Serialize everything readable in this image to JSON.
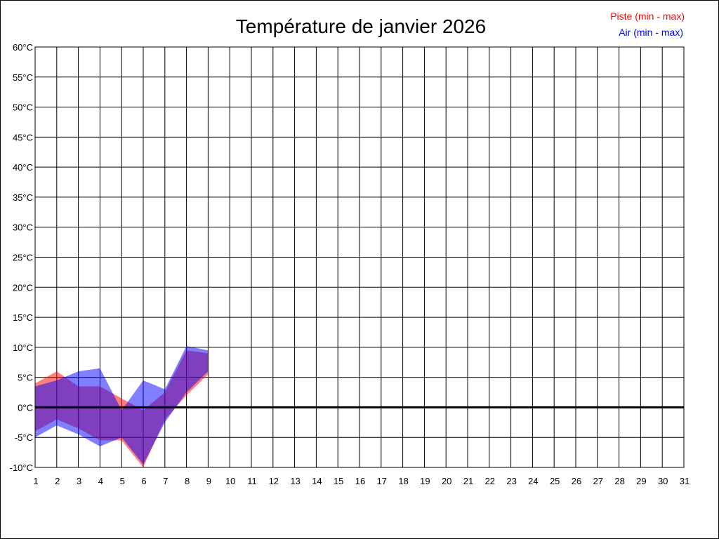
{
  "chart_data": {
    "type": "area",
    "title": "Température de janvier 2026",
    "x": [
      1,
      2,
      3,
      4,
      5,
      6,
      7,
      8,
      9,
      10,
      11,
      12,
      13,
      14,
      15,
      16,
      17,
      18,
      19,
      20,
      21,
      22,
      23,
      24,
      25,
      26,
      27,
      28,
      29,
      30,
      31
    ],
    "x_tick_labels": [
      "1",
      "2",
      "3",
      "4",
      "5",
      "6",
      "7",
      "8",
      "9",
      "10",
      "11",
      "12",
      "13",
      "14",
      "15",
      "16",
      "17",
      "18",
      "19",
      "20",
      "21",
      "22",
      "23",
      "24",
      "25",
      "26",
      "27",
      "28",
      "29",
      "30",
      "31"
    ],
    "y_tick_values": [
      60,
      55,
      50,
      45,
      40,
      35,
      30,
      25,
      20,
      15,
      10,
      5,
      0,
      -5,
      -10
    ],
    "y_tick_labels": [
      "60°C",
      "55°C",
      "50°C",
      "45°C",
      "40°C",
      "35°C",
      "30°C",
      "25°C",
      "20°C",
      "15°C",
      "10°C",
      "5°C",
      "0°C",
      "-5°C",
      "-10°C"
    ],
    "xlim": [
      1,
      31
    ],
    "ylim": [
      -10,
      60
    ],
    "grid": true,
    "zero_line": true,
    "legend_position": "top-right",
    "series": [
      {
        "name": "Piste (min - max)",
        "color": "#ff0000",
        "x": [
          1,
          2,
          3,
          4,
          5,
          6,
          7,
          8,
          9
        ],
        "min": [
          -4,
          -2,
          -3.5,
          -5.5,
          -5.5,
          -10,
          -2,
          2,
          5.5
        ],
        "max": [
          4,
          6,
          3.5,
          3.5,
          1.5,
          -0.5,
          2.5,
          9.5,
          9
        ]
      },
      {
        "name": "Air (min - max)",
        "color": "#0000ff",
        "x": [
          1,
          2,
          3,
          4,
          5,
          6,
          7,
          8,
          9
        ],
        "min": [
          -5,
          -3,
          -4.5,
          -6.5,
          -5,
          -9.5,
          -2.5,
          2.5,
          6
        ],
        "max": [
          3.5,
          4.5,
          6,
          6.5,
          -0.5,
          4.5,
          3,
          10.2,
          9.5
        ]
      }
    ]
  }
}
